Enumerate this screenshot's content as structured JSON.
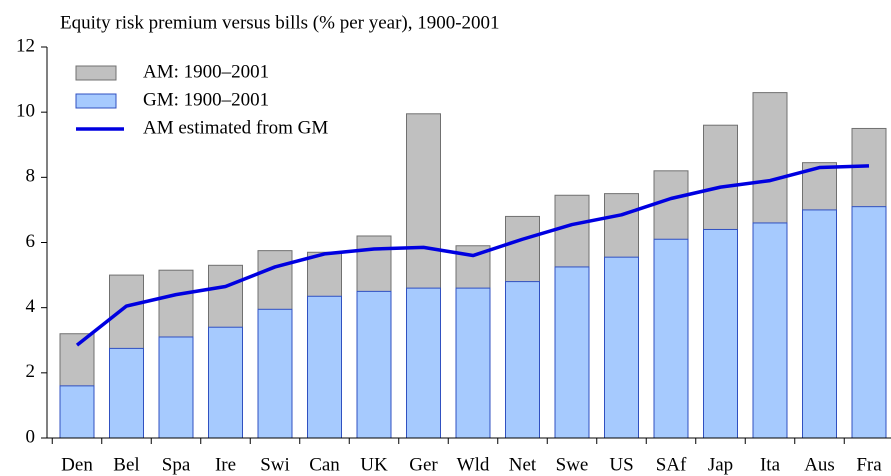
{
  "chart_data": {
    "type": "bar",
    "title": "Equity risk premium versus bills (% per year), 1900-2001",
    "categories": [
      "Den",
      "Bel",
      "Spa",
      "Ire",
      "Swi",
      "Can",
      "UK",
      "Ger",
      "Wld",
      "Net",
      "Swe",
      "US",
      "SAf",
      "Jap",
      "Ita",
      "Aus",
      "Fra"
    ],
    "series": [
      {
        "name": "AM: 1900–2001",
        "type": "bar",
        "color": "#c0c0c0",
        "values": [
          3.2,
          5.0,
          5.15,
          5.3,
          5.75,
          5.7,
          6.2,
          9.95,
          5.9,
          6.8,
          7.45,
          7.5,
          8.2,
          9.6,
          10.6,
          8.45,
          9.5
        ]
      },
      {
        "name": "GM: 1900–2001",
        "type": "bar",
        "color": "#a6cafe",
        "values": [
          1.6,
          2.75,
          3.1,
          3.4,
          3.95,
          4.35,
          4.5,
          4.6,
          4.6,
          4.8,
          5.25,
          5.55,
          6.1,
          6.4,
          6.6,
          7.0,
          7.1
        ]
      },
      {
        "name": "AM estimated from GM",
        "type": "line",
        "color": "#0000e0",
        "values": [
          2.85,
          4.05,
          4.4,
          4.65,
          5.25,
          5.65,
          5.8,
          5.85,
          5.6,
          6.1,
          6.55,
          6.85,
          7.35,
          7.7,
          7.9,
          8.3,
          8.35
        ]
      }
    ],
    "ylim": [
      0,
      12
    ],
    "yticks": [
      0,
      2,
      4,
      6,
      8,
      10,
      12
    ],
    "grid": false
  }
}
